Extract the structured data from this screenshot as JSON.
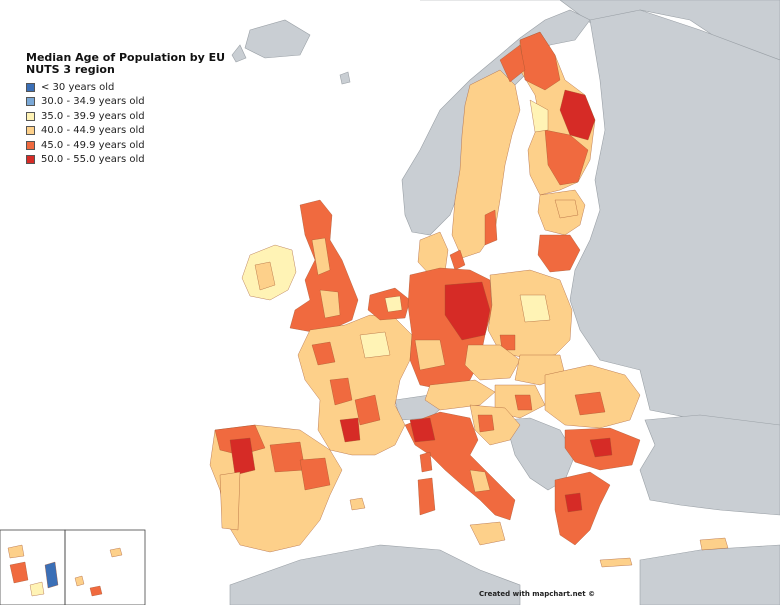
{
  "legend": {
    "title": "Median Age of Population by EU NUTS 3 region",
    "items": [
      {
        "label": "< 30 years old",
        "color": "#3b6fb6"
      },
      {
        "label": "30.0 - 34.9 years old",
        "color": "#7aa8d6"
      },
      {
        "label": "35.0 - 39.9 years old",
        "color": "#fff3b5"
      },
      {
        "label": "40.0 - 44.9 years old",
        "color": "#fdd08a"
      },
      {
        "label": "45.0 - 49.9 years old",
        "color": "#f06a3f"
      },
      {
        "label": "50.0 - 55.0 years old",
        "color": "#d62b26"
      }
    ]
  },
  "credit": "Created with mapchart.net ©",
  "colors": {
    "sea": "#ffffff",
    "non_eu_land": "#c9ced3",
    "border": "#7a7a7a"
  }
}
